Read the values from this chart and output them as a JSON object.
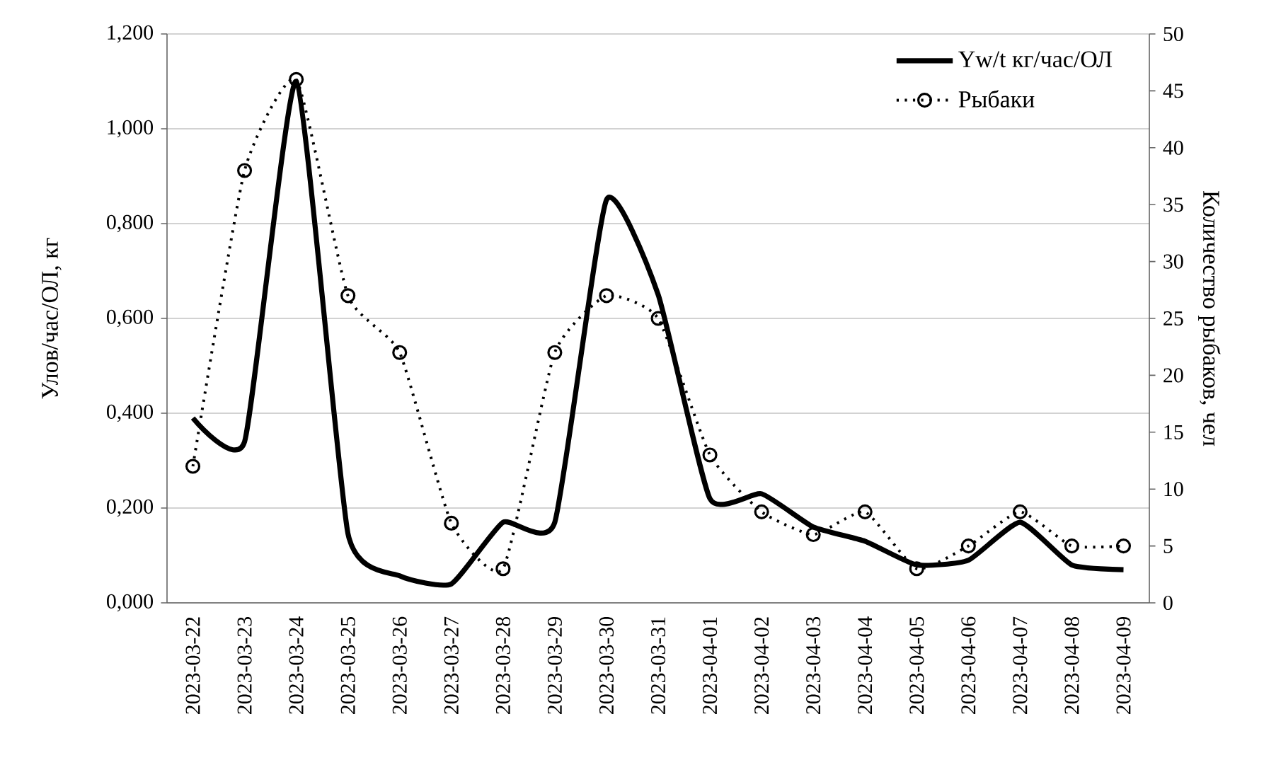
{
  "chart_data": {
    "type": "line",
    "ylabel": "Улов/час/ОЛ, кг",
    "y2label": "Количество рыбаков, чел",
    "categories": [
      "2023-03-22",
      "2023-03-23",
      "2023-03-24",
      "2023-03-25",
      "2023-03-26",
      "2023-03-27",
      "2023-03-28",
      "2023-03-29",
      "2023-03-30",
      "2023-03-31",
      "2023-04-01",
      "2023-04-02",
      "2023-04-03",
      "2023-04-04",
      "2023-04-05",
      "2023-04-06",
      "2023-04-07",
      "2023-04-08",
      "2023-04-09"
    ],
    "series": [
      {
        "name": "Yw/t кг/час/ОЛ",
        "color": "#000000",
        "type": "line",
        "marker": "none",
        "line_style": "solid",
        "values": [
          0.39,
          0.34,
          1.1,
          0.146,
          0.057,
          0.04,
          0.17,
          0.17,
          0.85,
          0.65,
          0.22,
          0.23,
          0.16,
          0.13,
          0.08,
          0.09,
          0.17,
          0.08,
          0.07
        ]
      },
      {
        "name": "Рыбаки",
        "color": "#000000",
        "type": "line",
        "axis": "y2",
        "marker": "circle",
        "line_style": "dotted",
        "values": [
          12,
          38,
          46,
          27,
          22,
          7,
          3,
          22,
          27,
          25,
          13,
          8,
          6,
          8,
          3,
          5,
          8,
          5,
          5
        ]
      }
    ],
    "ylim": [
      0,
      1.2
    ],
    "yticks": [
      {
        "value": 0,
        "label": "0,000"
      },
      {
        "value": 0.2,
        "label": "0,200"
      },
      {
        "value": 0.4,
        "label": "0,400"
      },
      {
        "value": 0.6,
        "label": "0,600"
      },
      {
        "value": 0.8,
        "label": "0,800"
      },
      {
        "value": 1.0,
        "label": "1,000"
      },
      {
        "value": 1.2,
        "label": "1,200"
      }
    ],
    "y2lim": [
      0,
      50
    ],
    "y2ticks": [
      0,
      5,
      10,
      15,
      20,
      25,
      30,
      35,
      40,
      45,
      50
    ],
    "grid": "y",
    "legend": "top right"
  }
}
